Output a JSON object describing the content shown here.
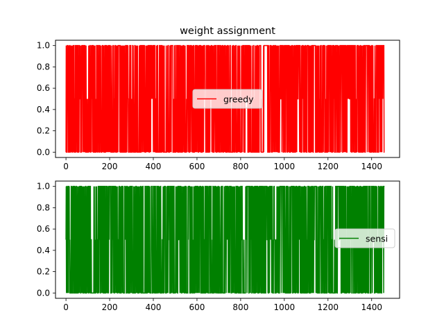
{
  "figure": {
    "title": "weight assignment"
  },
  "chart_data": [
    {
      "type": "line",
      "title": "weight assignment",
      "xlabel": "",
      "ylabel": "",
      "xlim": [
        -48,
        1528
      ],
      "ylim": [
        -0.05,
        1.05
      ],
      "xticks": [
        0,
        200,
        400,
        600,
        800,
        1000,
        1200,
        1400
      ],
      "yticks": [
        0.0,
        0.2,
        0.4,
        0.6,
        0.8,
        1.0
      ],
      "n_points": 1460,
      "grid": false,
      "legend_position": "center",
      "color": "#ff0000",
      "series": [
        {
          "name": "greedy",
          "color": "#ff0000"
        }
      ],
      "values_note": "dense signal switching among 0, 0.5 and 1 at almost every step; individual values not readable"
    },
    {
      "type": "line",
      "title": "",
      "xlabel": "",
      "ylabel": "",
      "xlim": [
        -48,
        1528
      ],
      "ylim": [
        -0.05,
        1.05
      ],
      "xticks": [
        0,
        200,
        400,
        600,
        800,
        1000,
        1200,
        1400
      ],
      "yticks": [
        0.0,
        0.2,
        0.4,
        0.6,
        0.8,
        1.0
      ],
      "n_points": 1460,
      "grid": false,
      "legend_position": "center right",
      "color": "#008000",
      "series": [
        {
          "name": "sensi",
          "color": "#008000"
        }
      ],
      "values_note": "dense signal switching among 0, 0.5 and 1 at almost every step; individual values not readable"
    }
  ]
}
